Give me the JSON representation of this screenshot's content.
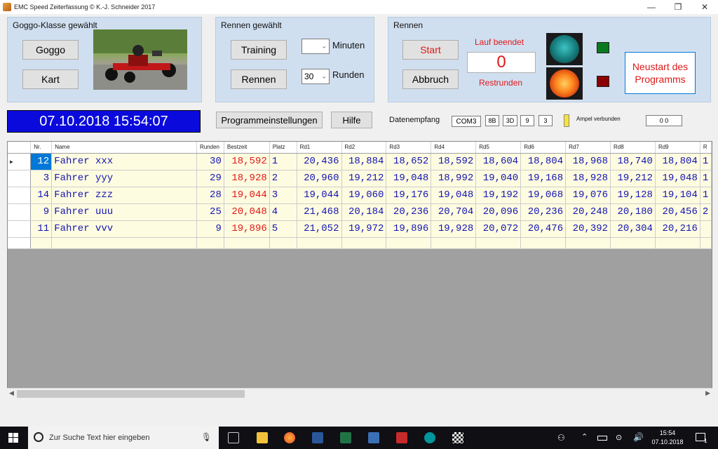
{
  "window": {
    "title": "EMC Speed Zeiterfassung    © K.-J. Schneider 2017",
    "minimize": "—",
    "restore": "❐",
    "close": "✕"
  },
  "goggo_panel": {
    "title": "Goggo-Klasse gewählt",
    "btn_goggo": "Goggo",
    "btn_kart": "Kart"
  },
  "rennen_panel": {
    "title": "Rennen gewählt",
    "btn_training": "Training",
    "btn_rennen": "Rennen",
    "minutes_value": "",
    "minutes_label": "Minuten",
    "rounds_value": "30",
    "rounds_label": "Runden"
  },
  "race_panel": {
    "title": "Rennen",
    "btn_start": "Start",
    "btn_abbruch": "Abbruch",
    "status_label": "Lauf beendet",
    "counter": "0",
    "restrunden_label": "Restrunden",
    "btn_neustart": "Neustart des Programms"
  },
  "toolbar": {
    "datetime": "07.10.2018 15:54:07",
    "btn_settings": "Programmeinstellungen",
    "btn_help": "Hilfe",
    "datenempfang_label": "Datenempfang",
    "com_port": "COM3",
    "byte1": "8B",
    "byte2": "3D",
    "byte3": "9",
    "byte4": "3",
    "ampel_label": "Ampel verbunden",
    "ampel_value": "0 0"
  },
  "colors": {
    "panel": "#d0dff0",
    "datetime_bg": "#0a0adc",
    "grid_row": "#fefce0",
    "grid_text": "#1414b4",
    "best_time": "#e01818",
    "selected": "#0078d7"
  },
  "grid": {
    "columns": [
      "Nr.",
      "Name",
      "Runden",
      "Bestzeit",
      "Platz",
      "Rd1",
      "Rd2",
      "Rd3",
      "Rd4",
      "Rd5",
      "Rd6",
      "Rd7",
      "Rd8",
      "Rd9",
      "R"
    ],
    "rows": [
      {
        "nr": "12",
        "name": "Fahrer  xxx",
        "runden": "30",
        "best": "18,592",
        "platz": "1",
        "rd": [
          "20,436",
          "18,884",
          "18,652",
          "18,592",
          "18,604",
          "18,804",
          "18,968",
          "18,740",
          "18,804"
        ],
        "tail": "1"
      },
      {
        "nr": "3",
        "name": "Fahrer  yyy",
        "runden": "29",
        "best": "18,928",
        "platz": "2",
        "rd": [
          "20,960",
          "19,212",
          "19,048",
          "18,992",
          "19,040",
          "19,168",
          "18,928",
          "19,212",
          "19,048"
        ],
        "tail": "1"
      },
      {
        "nr": "14",
        "name": "Fahrer  zzz",
        "runden": "28",
        "best": "19,044",
        "platz": "3",
        "rd": [
          "19,044",
          "19,060",
          "19,176",
          "19,048",
          "19,192",
          "19,068",
          "19,076",
          "19,128",
          "19,104"
        ],
        "tail": "1"
      },
      {
        "nr": "9",
        "name": "Fahrer  uuu",
        "runden": "25",
        "best": "20,048",
        "platz": "4",
        "rd": [
          "21,468",
          "20,184",
          "20,236",
          "20,704",
          "20,096",
          "20,236",
          "20,248",
          "20,180",
          "20,456"
        ],
        "tail": "2"
      },
      {
        "nr": "11",
        "name": "Fahrer  vvv",
        "runden": "9",
        "best": "19,896",
        "platz": "5",
        "rd": [
          "21,052",
          "19,972",
          "19,896",
          "19,928",
          "20,072",
          "20,476",
          "20,392",
          "20,304",
          "20,216"
        ],
        "tail": ""
      }
    ]
  },
  "taskbar": {
    "search_placeholder": "Zur Suche Text hier eingeben",
    "time": "15:54",
    "date": "07.10.2018",
    "notifications": "1"
  }
}
